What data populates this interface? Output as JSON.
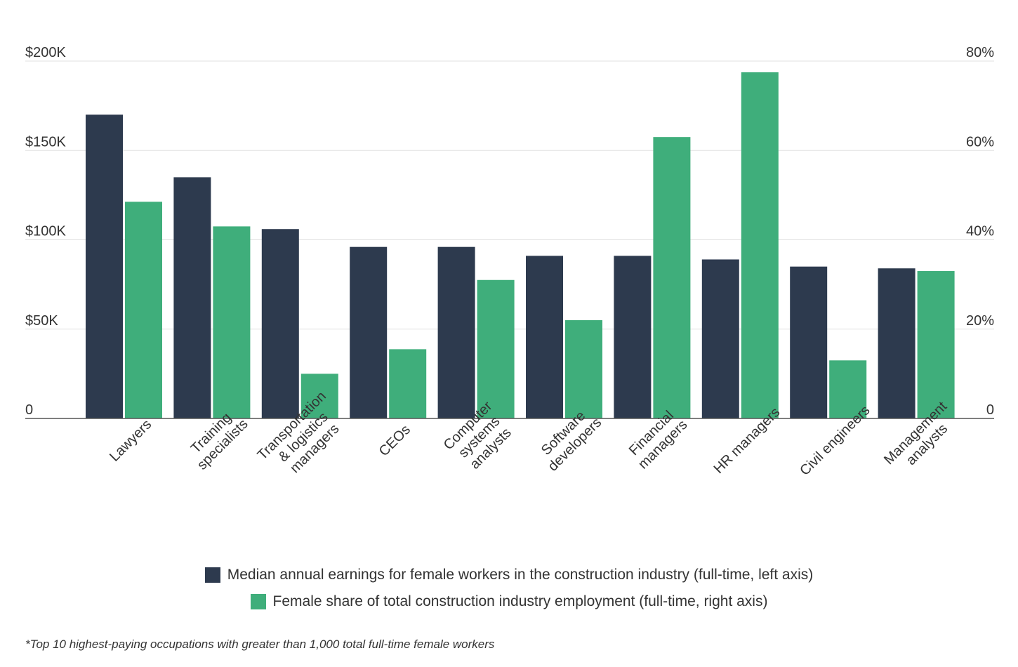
{
  "chart_data": {
    "type": "bar",
    "categories": [
      "Lawyers",
      "Training specialists",
      "Transportation & logistics managers",
      "CEOs",
      "Computer systems analysts",
      "Software developers",
      "Financial managers",
      "HR managers",
      "Civil engineers",
      "Management analysts"
    ],
    "category_lines": [
      [
        "Lawyers"
      ],
      [
        "Training",
        "specialists"
      ],
      [
        "Transportation",
        "& logistics",
        "managers"
      ],
      [
        "CEOs"
      ],
      [
        "Computer",
        "systems",
        "analysts"
      ],
      [
        "Software",
        "developers"
      ],
      [
        "Financial",
        "managers"
      ],
      [
        "HR managers"
      ],
      [
        "Civil engineers"
      ],
      [
        "Management",
        "analysts"
      ]
    ],
    "series": [
      {
        "name": "Median annual earnings for female workers in the construction industry (full-time, left axis)",
        "axis": "left",
        "color": "#2d3a4e",
        "values": [
          170000,
          135000,
          106000,
          96000,
          96000,
          91000,
          91000,
          89000,
          85000,
          84000
        ]
      },
      {
        "name": "Female share of total construction industry employment (full-time, right axis)",
        "axis": "right",
        "color": "#3fae7b",
        "values": [
          48.5,
          43,
          10,
          15.5,
          31,
          22,
          63,
          77.5,
          13,
          33
        ]
      }
    ],
    "left_axis": {
      "ylim": [
        0,
        200000
      ],
      "ticks": [
        0,
        50000,
        100000,
        150000,
        200000
      ],
      "tick_labels": [
        "0",
        "$50K",
        "$100K",
        "$150K",
        "$200K"
      ]
    },
    "right_axis": {
      "ylim": [
        0,
        80
      ],
      "ticks": [
        0,
        20,
        40,
        60,
        80
      ],
      "tick_labels": [
        "0",
        "20%",
        "40%",
        "60%",
        "80%"
      ]
    },
    "grid": true,
    "legend_position": "bottom-center",
    "footnote": "*Top 10 highest-paying occupations with greater than 1,000 total full-time female workers"
  }
}
